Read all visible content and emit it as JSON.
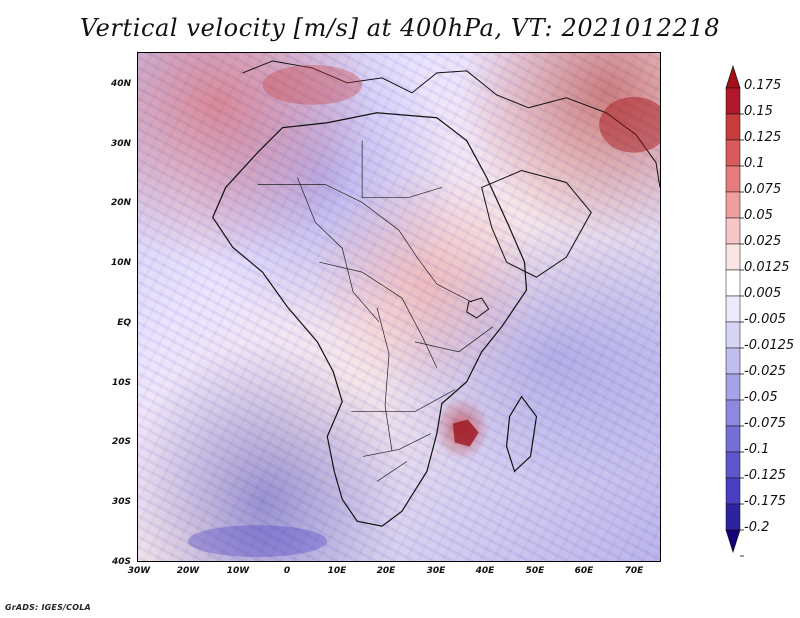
{
  "title": "Vertical velocity [m/s] at 400hPa, VT: 2021012218",
  "map": {
    "variable": "Vertical velocity",
    "units": "m/s",
    "pressure_level": "400hPa",
    "valid_time": "2021012218",
    "latitude_ticks": [
      "40N",
      "30N",
      "20N",
      "10N",
      "EQ",
      "10S",
      "20S",
      "30S",
      "40S"
    ],
    "longitude_ticks": [
      "30W",
      "20W",
      "10W",
      "0",
      "10E",
      "20E",
      "30E",
      "40E",
      "50E",
      "60E",
      "70E"
    ],
    "colors": {
      "strong_positive": "#b2182b",
      "positive": "#ef8a8a",
      "neutral": "#ffffff",
      "negative": "#8080de",
      "strong_negative": "#2f2fa8",
      "coastline": "#111111"
    }
  },
  "colorbar": {
    "labels": [
      "0.175",
      "0.15",
      "0.125",
      "0.1",
      "0.075",
      "0.05",
      "0.025",
      "0.0125",
      "0.005",
      "-0.005",
      "-0.0125",
      "-0.025",
      "-0.05",
      "-0.075",
      "-0.1",
      "-0.125",
      "-0.175",
      "-0.2"
    ],
    "colors": [
      "#a50f15",
      "#b2182b",
      "#c83c3c",
      "#d85a5a",
      "#e67c7c",
      "#ef9f9f",
      "#f6c5c5",
      "#fbe4e4",
      "#ffffff",
      "#ecebfb",
      "#d7d5f5",
      "#c0bdef",
      "#a7a3e8",
      "#8e88e0",
      "#756fd7",
      "#5d56cd",
      "#4a3fc3",
      "#2d239f",
      "#14007a"
    ]
  },
  "credit": "GrADS: IGES/COLA"
}
